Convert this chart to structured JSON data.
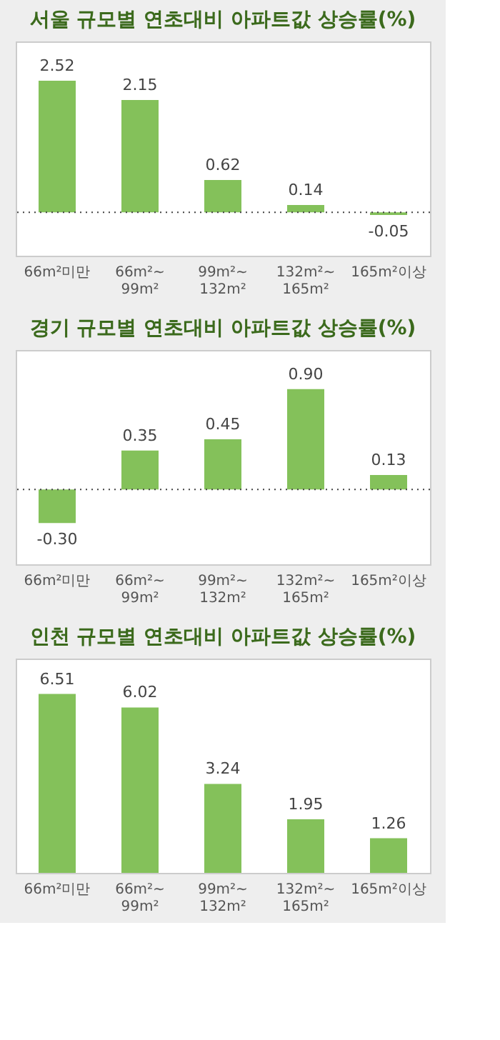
{
  "chart_data": [
    {
      "type": "bar",
      "title": "서울 규모별 연초대비 아파트값 상승률(%)",
      "categories": [
        "66m²미만",
        "66m²~ 99m²",
        "99m²~ 132m²",
        "132m²~ 165m²",
        "165m²이상"
      ],
      "values": [
        2.52,
        2.15,
        0.62,
        0.14,
        -0.05
      ],
      "value_labels": [
        "2.52",
        "2.15",
        "0.62",
        "0.14",
        "-0.05"
      ],
      "color": "#84c15a",
      "ylim": [
        -0.83,
        3.27
      ],
      "tick_labels": "x",
      "grid": false,
      "ref_lines": [
        {
          "axis": "y",
          "value": 0,
          "color": "#444444",
          "line_style": "dotted"
        }
      ]
    },
    {
      "type": "bar",
      "title": "경기 규모별 연초대비 아파트값 상승률(%)",
      "categories": [
        "66m²미만",
        "66m²~ 99m²",
        "99m²~ 132m²",
        "132m²~ 165m²",
        "165m²이상"
      ],
      "values": [
        -0.3,
        0.35,
        0.45,
        0.9,
        0.13
      ],
      "value_labels": [
        "-0.30",
        "0.35",
        "0.45",
        "0.90",
        "0.13"
      ],
      "color": "#84c15a",
      "ylim": [
        -0.67,
        1.25
      ],
      "tick_labels": "x",
      "grid": false,
      "ref_lines": [
        {
          "axis": "y",
          "value": 0,
          "color": "#444444",
          "line_style": "dotted"
        }
      ]
    },
    {
      "type": "bar",
      "title": "인천 규모별 연초대비 아파트값 상승률(%)",
      "categories": [
        "66m²미만",
        "66m²~ 99m²",
        "99m²~ 132m²",
        "132m²~ 165m²",
        "165m²이상"
      ],
      "values": [
        6.51,
        6.02,
        3.24,
        1.95,
        1.26
      ],
      "value_labels": [
        "6.51",
        "6.02",
        "3.24",
        "1.95",
        "1.26"
      ],
      "color": "#84c15a",
      "ylim": [
        0,
        7.8
      ],
      "tick_labels": "x",
      "grid": false
    }
  ]
}
